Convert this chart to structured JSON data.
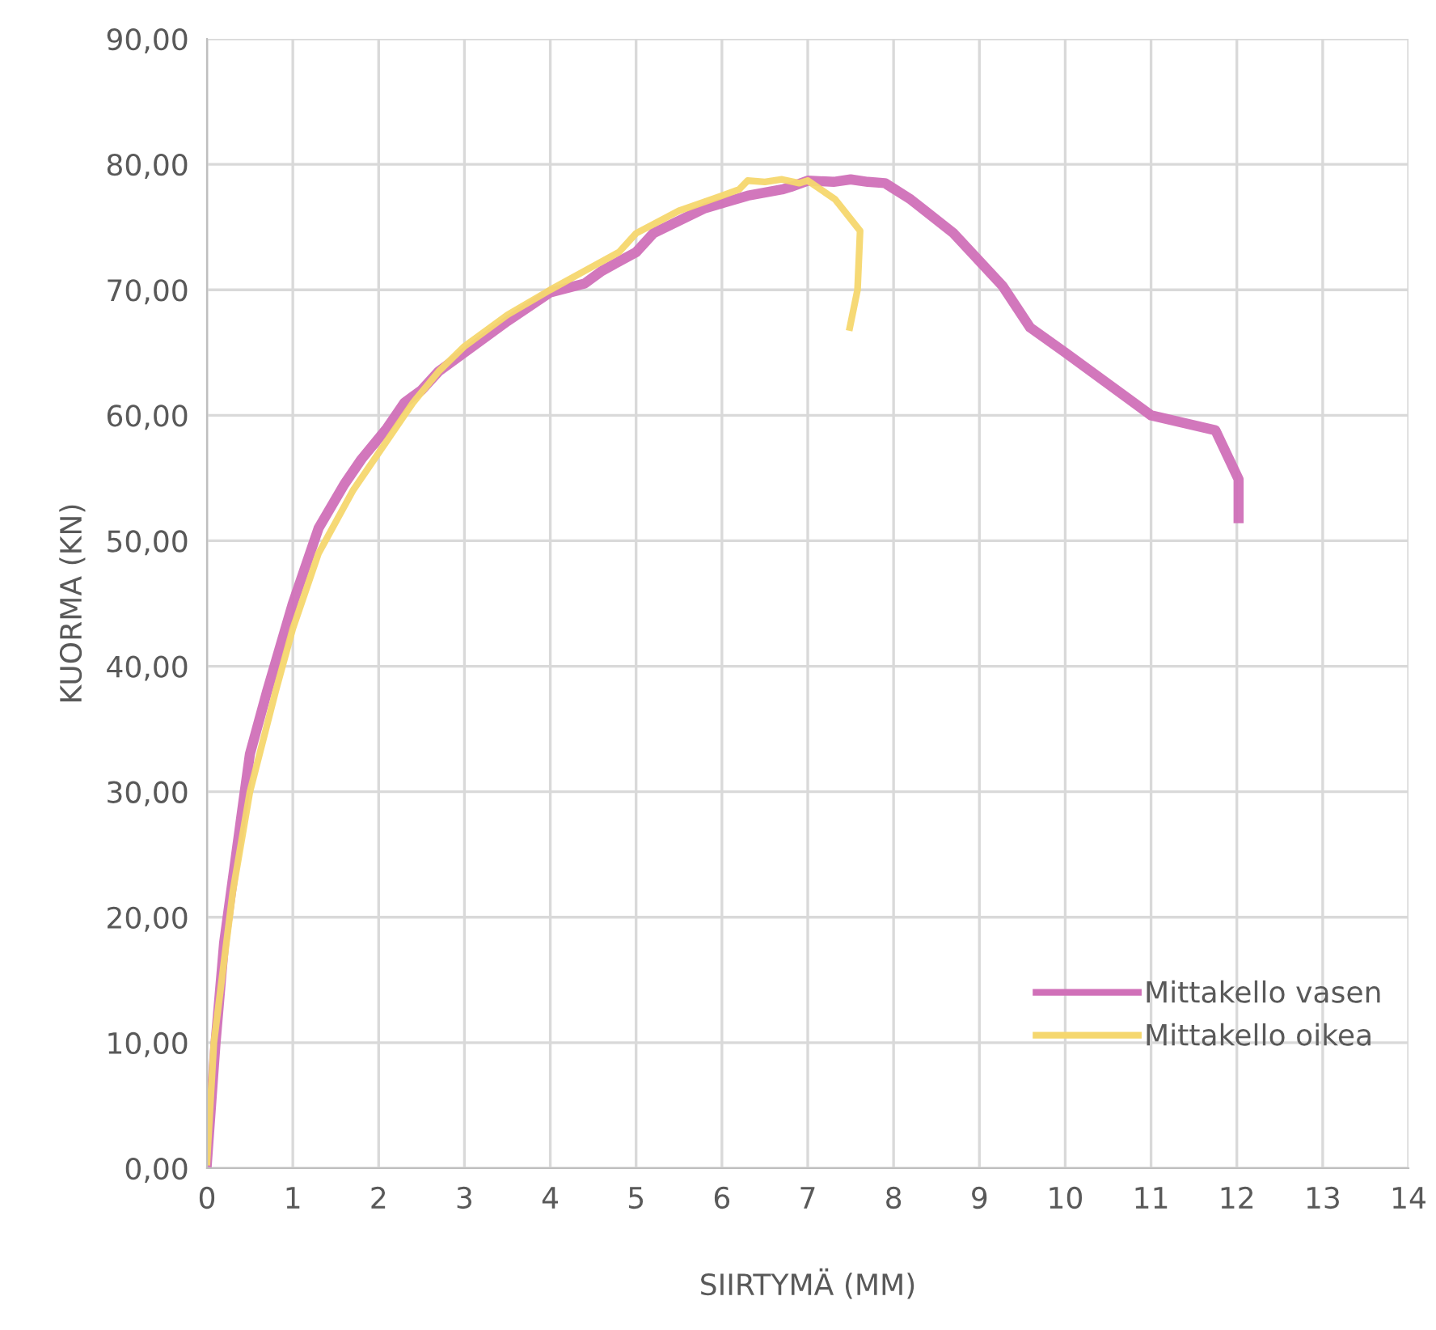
{
  "chart_data": {
    "type": "line",
    "xlabel": "SIIRTYMÄ (MM)",
    "ylabel": "KUORMA (KN)",
    "xlim": [
      0,
      14
    ],
    "xticks": [
      0,
      1,
      2,
      3,
      4,
      5,
      6,
      7,
      8,
      9,
      10,
      11,
      12,
      13,
      14
    ],
    "ylim": [
      0,
      90
    ],
    "yticks": [
      {
        "value": 0,
        "label": "0,00"
      },
      {
        "value": 10,
        "label": "10,00"
      },
      {
        "value": 20,
        "label": "20,00"
      },
      {
        "value": 30,
        "label": "30,00"
      },
      {
        "value": 40,
        "label": "40,00"
      },
      {
        "value": 50,
        "label": "50,00"
      },
      {
        "value": 60,
        "label": "60,00"
      },
      {
        "value": 70,
        "label": "70,00"
      },
      {
        "value": 80,
        "label": "80,00"
      },
      {
        "value": 90,
        "label": "90,00"
      }
    ],
    "grid": true,
    "legend": "bottom right",
    "marker": "none",
    "line_style": "solid",
    "series": [
      {
        "name": "Mittakello vasen",
        "color": "#d070b8",
        "x": [
          0,
          0.1,
          0.2,
          0.4,
          0.5,
          0.7,
          1.0,
          1.3,
          1.6,
          1.8,
          2.1,
          2.3,
          2.5,
          2.7,
          3.0,
          3.5,
          4.0,
          4.4,
          4.6,
          5.0,
          5.2,
          5.8,
          6.3,
          6.7,
          6.8,
          7.0,
          7.3,
          7.5,
          7.7,
          7.9,
          8.2,
          8.7,
          9.27,
          9.59,
          10.0,
          11.0,
          11.75,
          12.02,
          12.02
        ],
        "values": [
          0.5,
          10,
          18,
          28,
          33,
          38,
          45,
          51,
          54.5,
          56.5,
          59,
          61,
          62,
          63.5,
          65,
          67.5,
          69.8,
          70.5,
          71.5,
          73,
          74.5,
          76.5,
          77.5,
          78,
          78.2,
          78.7,
          78.6,
          78.8,
          78.6,
          78.5,
          77.2,
          74.5,
          70.3,
          67,
          65,
          60,
          58.8,
          54.9,
          51.8
        ]
      },
      {
        "name": "Mittakello oikea",
        "color": "#f5d76e",
        "x": [
          0,
          0.08,
          0.3,
          0.5,
          0.8,
          1.0,
          1.3,
          1.7,
          2.0,
          2.4,
          2.7,
          3.0,
          3.5,
          4.0,
          4.4,
          4.8,
          5.0,
          5.5,
          6.0,
          6.2,
          6.3,
          6.5,
          6.7,
          6.9,
          7.0,
          7.32,
          7.61,
          7.58,
          7.49
        ],
        "values": [
          0.5,
          10,
          22,
          30,
          38,
          43,
          49,
          54,
          57,
          61,
          63.5,
          65.5,
          68,
          70,
          71.5,
          73,
          74.5,
          76.3,
          77.5,
          78,
          78.7,
          78.6,
          78.8,
          78.5,
          78.7,
          77.2,
          74.7,
          70,
          67
        ]
      }
    ]
  }
}
